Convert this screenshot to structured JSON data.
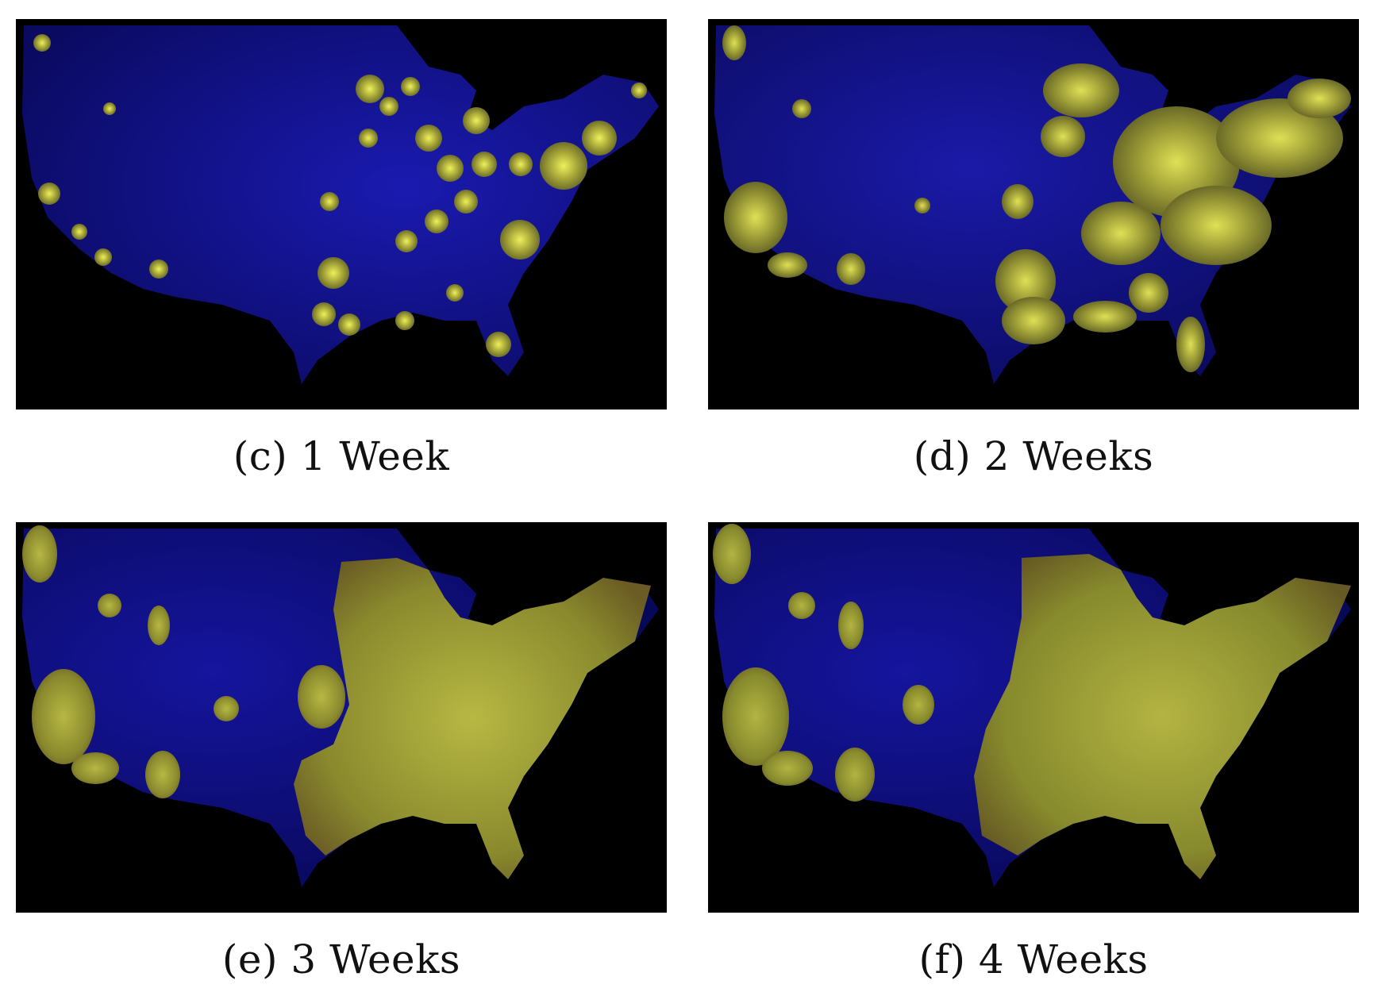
{
  "figure": {
    "panels": [
      {
        "caption": "(c) 1 Week"
      },
      {
        "caption": "(d) 2 Weeks"
      },
      {
        "caption": "(e) 3 Weeks"
      },
      {
        "caption": "(f) 4 Weeks"
      }
    ]
  },
  "colors": {
    "background": "#000000",
    "land_uninfected": "#0b0b7a",
    "infected_fill": "#8f8f2a",
    "infected_highlight": "#e6e84a",
    "dense_red": "#a6281a"
  }
}
